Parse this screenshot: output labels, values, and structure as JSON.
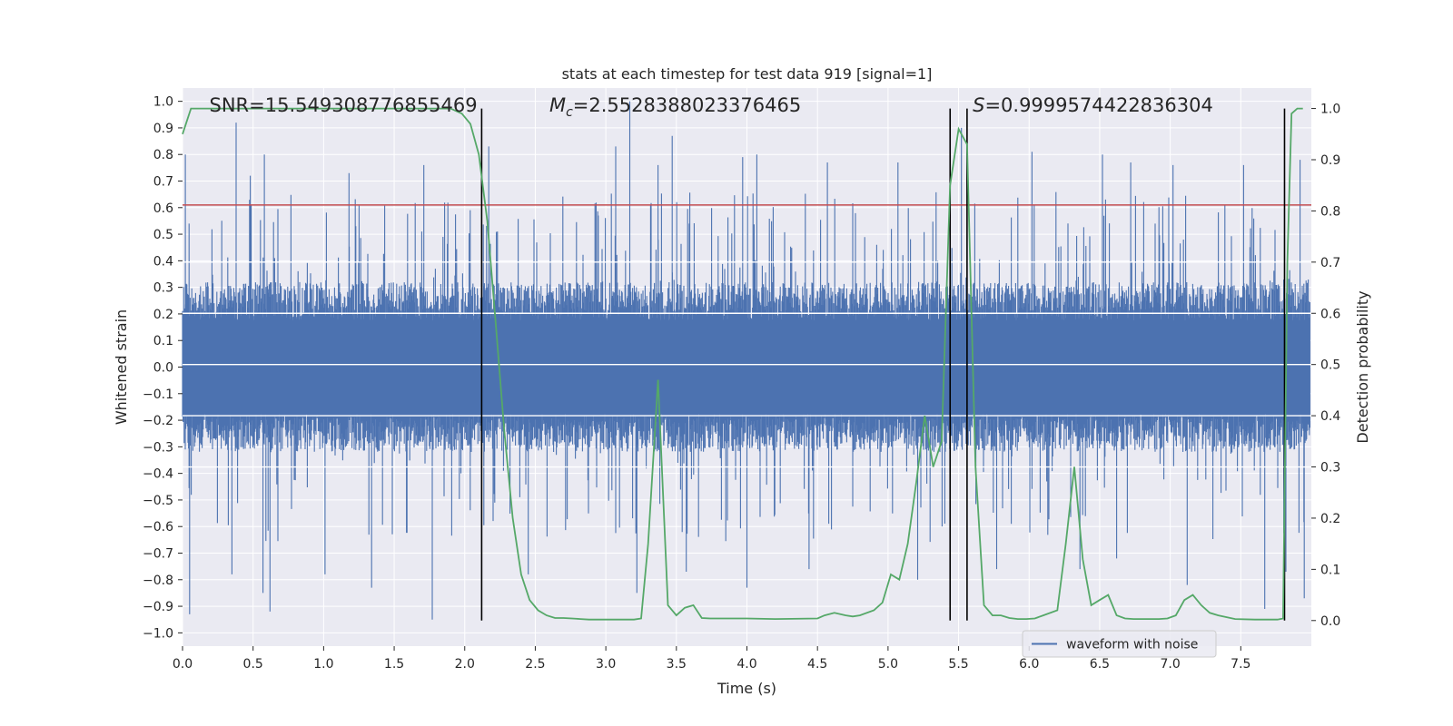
{
  "chart_data": {
    "type": "line",
    "title": "stats at each timestep for test data 919 [signal=1]",
    "xlabel": "Time (s)",
    "ylabel": "Whitened strain",
    "ylabel_right": "Detection probability",
    "xlim": [
      0.0,
      8.0
    ],
    "ylim": [
      -1.05,
      1.05
    ],
    "ylim_right": [
      -0.05,
      1.04
    ],
    "x_ticks": [
      0.0,
      0.5,
      1.0,
      1.5,
      2.0,
      2.5,
      3.0,
      3.5,
      4.0,
      4.5,
      5.0,
      5.5,
      6.0,
      6.5,
      7.0,
      7.5
    ],
    "x_tick_labels": [
      "0.0",
      "0.5",
      "1.0",
      "1.5",
      "2.0",
      "2.5",
      "3.0",
      "3.5",
      "4.0",
      "4.5",
      "5.0",
      "5.5",
      "6.0",
      "6.5",
      "7.0",
      "7.5"
    ],
    "y_ticks": [
      -1.0,
      -0.9,
      -0.8,
      -0.7,
      -0.6,
      -0.5,
      -0.4,
      -0.3,
      -0.2,
      -0.1,
      0.0,
      0.1,
      0.2,
      0.3,
      0.4,
      0.5,
      0.6,
      0.7,
      0.8,
      0.9,
      1.0
    ],
    "y_tick_labels": [
      "−1.0",
      "−0.9",
      "−0.8",
      "−0.7",
      "−0.6",
      "−0.5",
      "−0.4",
      "−0.3",
      "−0.2",
      "−0.1",
      "0.0",
      "0.1",
      "0.2",
      "0.3",
      "0.4",
      "0.5",
      "0.6",
      "0.7",
      "0.8",
      "0.9",
      "1.0"
    ],
    "y_right_ticks": [
      0.0,
      0.1,
      0.2,
      0.3,
      0.4,
      0.5,
      0.6,
      0.7,
      0.8,
      0.9,
      1.0
    ],
    "y_right_tick_labels": [
      "0.0",
      "0.1",
      "0.2",
      "0.3",
      "0.4",
      "0.5",
      "0.6",
      "0.7",
      "0.8",
      "0.9",
      "1.0"
    ],
    "grid": true,
    "legend": {
      "placement": "lower-right",
      "entries": [
        "waveform with noise"
      ]
    },
    "waveform": {
      "name": "waveform with noise",
      "color": "#4c72b0",
      "t_start": 0.0,
      "t_end": 7.99,
      "typical_upper": 0.32,
      "typical_lower": -0.32,
      "peaks_upper": [
        [
          0.02,
          0.8
        ],
        [
          0.38,
          0.92
        ],
        [
          0.48,
          0.72
        ],
        [
          0.58,
          0.8
        ],
        [
          1.18,
          0.73
        ],
        [
          1.71,
          0.76
        ],
        [
          2.17,
          0.83
        ],
        [
          3.07,
          0.83
        ],
        [
          3.17,
          1.0
        ],
        [
          3.37,
          0.76
        ],
        [
          3.47,
          0.87
        ],
        [
          3.97,
          0.79
        ],
        [
          4.07,
          0.8
        ],
        [
          4.57,
          0.77
        ],
        [
          5.07,
          0.77
        ],
        [
          5.52,
          0.9
        ],
        [
          6.02,
          0.81
        ],
        [
          6.52,
          0.8
        ],
        [
          6.72,
          0.77
        ],
        [
          7.02,
          0.76
        ],
        [
          7.52,
          0.76
        ],
        [
          7.92,
          0.78
        ]
      ],
      "peaks_lower": [
        [
          0.05,
          -0.93
        ],
        [
          0.35,
          -0.78
        ],
        [
          0.57,
          -0.85
        ],
        [
          0.62,
          -0.92
        ],
        [
          1.01,
          -0.78
        ],
        [
          1.34,
          -0.83
        ],
        [
          1.77,
          -0.95
        ],
        [
          2.45,
          -0.78
        ],
        [
          3.22,
          -0.85
        ],
        [
          3.57,
          -0.77
        ],
        [
          4.0,
          -0.83
        ],
        [
          4.44,
          -0.76
        ],
        [
          5.21,
          -0.8
        ],
        [
          5.77,
          -0.76
        ],
        [
          6.36,
          -0.76
        ],
        [
          6.62,
          -0.72
        ],
        [
          7.12,
          -0.82
        ],
        [
          7.67,
          -0.91
        ],
        [
          7.82,
          -0.77
        ],
        [
          7.95,
          -0.87
        ]
      ],
      "seed": 919
    },
    "threshold": {
      "y": 0.61,
      "color": "#c44e52"
    },
    "detection_probability": {
      "color": "#55a868",
      "x": [
        0.0,
        0.06,
        0.1,
        0.5,
        1.0,
        1.5,
        1.9,
        1.98,
        2.04,
        2.1,
        2.16,
        2.22,
        2.28,
        2.34,
        2.4,
        2.46,
        2.52,
        2.58,
        2.64,
        2.7,
        2.76,
        2.82,
        2.88,
        3.0,
        3.1,
        3.2,
        3.25,
        3.3,
        3.37,
        3.44,
        3.5,
        3.56,
        3.62,
        3.68,
        3.74,
        3.8,
        4.0,
        4.2,
        4.5,
        4.55,
        4.62,
        4.7,
        4.75,
        4.8,
        4.9,
        4.96,
        5.02,
        5.08,
        5.14,
        5.2,
        5.26,
        5.32,
        5.38,
        5.44,
        5.5,
        5.56,
        5.62,
        5.68,
        5.74,
        5.8,
        5.86,
        5.92,
        5.98,
        6.04,
        6.1,
        6.2,
        6.26,
        6.32,
        6.38,
        6.44,
        6.5,
        6.56,
        6.62,
        6.68,
        6.74,
        6.8,
        6.86,
        6.92,
        6.98,
        7.04,
        7.1,
        7.16,
        7.22,
        7.28,
        7.34,
        7.46,
        7.6,
        7.7,
        7.76,
        7.8,
        7.83,
        7.86,
        7.9,
        7.94
      ],
      "y": [
        0.95,
        1.0,
        1.0,
        1.0,
        1.0,
        1.0,
        1.0,
        0.99,
        0.97,
        0.91,
        0.78,
        0.58,
        0.37,
        0.2,
        0.09,
        0.04,
        0.02,
        0.01,
        0.005,
        0.005,
        0.004,
        0.003,
        0.002,
        0.002,
        0.002,
        0.002,
        0.004,
        0.15,
        0.47,
        0.03,
        0.01,
        0.025,
        0.03,
        0.005,
        0.004,
        0.004,
        0.004,
        0.003,
        0.004,
        0.01,
        0.015,
        0.01,
        0.008,
        0.01,
        0.02,
        0.035,
        0.09,
        0.08,
        0.15,
        0.27,
        0.4,
        0.3,
        0.35,
        0.85,
        0.96,
        0.93,
        0.3,
        0.03,
        0.01,
        0.01,
        0.005,
        0.003,
        0.003,
        0.004,
        0.01,
        0.02,
        0.15,
        0.3,
        0.12,
        0.03,
        0.04,
        0.05,
        0.01,
        0.004,
        0.003,
        0.003,
        0.003,
        0.003,
        0.004,
        0.01,
        0.04,
        0.05,
        0.03,
        0.015,
        0.01,
        0.003,
        0.002,
        0.002,
        0.002,
        0.004,
        0.7,
        0.99,
        1.0,
        1.0
      ]
    },
    "vertical_lines": {
      "color": "#000000",
      "x": [
        2.12,
        5.44,
        5.56,
        7.81
      ],
      "ymin": 0.0,
      "ymax": 1.0
    },
    "annotations": [
      {
        "text": "SNR=15.549308776855469",
        "x": 0.19
      },
      {
        "text_prefix": "M",
        "text_sub": "c",
        "text_suffix": "=2.5528388023376465",
        "x": 2.6
      },
      {
        "text_prefix": "S",
        "text_suffix": "=0.9999574422836304",
        "x": 5.6
      }
    ],
    "colors": {
      "background": "#eaeaf2",
      "grid": "#ffffff",
      "text": "#262626"
    }
  }
}
